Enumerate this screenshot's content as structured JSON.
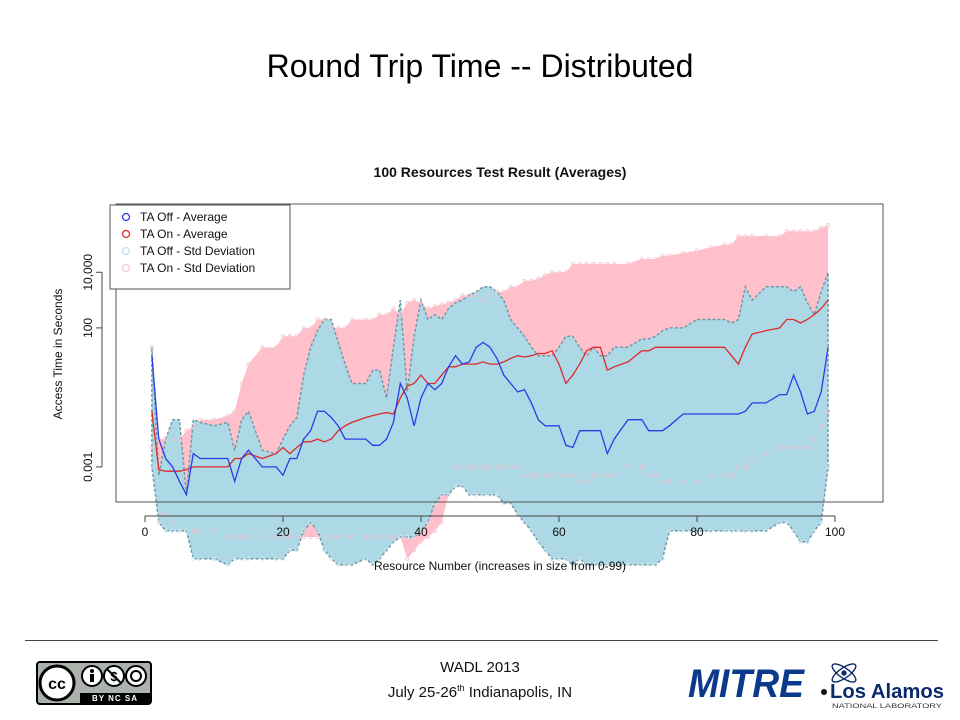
{
  "slide": {
    "title": "Round Trip Time -- Distributed",
    "footer_line1": "WADL 2013",
    "footer_line2_pre": "July 25-26",
    "footer_line2_sup": "th",
    "footer_line2_post": " Indianapolis, IN"
  },
  "logos": {
    "cc_badge_text": "BY NC SA",
    "mitre_text": "MITRE",
    "lanl_name": "Los Alamos",
    "lanl_sub": "NATIONAL LABORATORY"
  },
  "colors": {
    "off_avg": "#2b3de6",
    "on_avg": "#dd2b2b",
    "off_band": "#add8e6",
    "on_band": "#ffc0cb",
    "off_band_edge": "#6e9aa8"
  },
  "chart_data": {
    "type": "line",
    "title": "100 Resources Test Result (Averages)",
    "xlabel": "Resource Number (increases in size from 0-99)",
    "ylabel": "Access Time in Seconds",
    "y_scale": "log10",
    "xlim": [
      1,
      99
    ],
    "x_ticks": [
      0,
      20,
      40,
      60,
      80,
      100
    ],
    "x_tick_labels": [
      "0",
      "20",
      "40",
      "60",
      "80",
      "100"
    ],
    "y_ticks": [
      0.001,
      100,
      10000
    ],
    "y_tick_labels": [
      "0.001",
      "100",
      "10,000"
    ],
    "legend_position": "top-left",
    "legend": [
      "TA Off - Average",
      "TA On - Average",
      "TA Off - Std Deviation",
      "TA On - Std Deviation"
    ],
    "x": [
      1,
      2,
      3,
      4,
      5,
      6,
      7,
      8,
      10,
      12,
      13,
      14,
      15,
      17,
      19,
      20,
      21,
      22,
      23,
      24,
      25,
      26,
      27,
      28,
      29,
      30,
      32,
      33,
      34,
      35,
      36,
      37,
      38,
      39,
      40,
      41,
      42,
      43,
      44,
      45,
      46,
      47,
      48,
      49,
      50,
      51,
      52,
      53,
      54,
      55,
      56,
      57,
      58,
      59,
      60,
      61,
      62,
      63,
      64,
      65,
      66,
      67,
      68,
      70,
      72,
      73,
      74,
      75,
      76,
      78,
      80,
      82,
      84,
      85,
      86,
      87,
      88,
      90,
      92,
      93,
      94,
      95,
      96,
      97,
      98,
      99
    ],
    "series": [
      {
        "name": "TA Off - Average",
        "values": [
          10,
          0.01,
          0.002,
          0.001,
          0.0003,
          0.0001,
          0.003,
          0.002,
          0.002,
          0.002,
          0.0003,
          0.002,
          0.004,
          0.001,
          0.001,
          0.0005,
          0.002,
          0.002,
          0.01,
          0.02,
          0.1,
          0.1,
          0.06,
          0.03,
          0.01,
          0.01,
          0.01,
          0.006,
          0.006,
          0.01,
          0.04,
          1,
          0.3,
          0.03,
          0.3,
          1,
          0.6,
          1,
          4,
          10,
          5,
          6,
          20,
          30,
          20,
          8,
          2,
          1,
          0.5,
          0.6,
          0.2,
          0.05,
          0.03,
          0.03,
          0.03,
          0.006,
          0.005,
          0.02,
          0.02,
          0.02,
          0.02,
          0.003,
          0.01,
          0.05,
          0.05,
          0.02,
          0.02,
          0.02,
          0.03,
          0.08,
          0.08,
          0.08,
          0.08,
          0.08,
          0.08,
          0.1,
          0.2,
          0.2,
          0.4,
          0.4,
          2,
          0.5,
          0.08,
          0.1,
          0.5,
          20
        ]
      },
      {
        "name": "TA On - Average",
        "values": [
          0.1,
          0.0008,
          0.0007,
          0.0007,
          0.0007,
          0.0008,
          0.001,
          0.001,
          0.001,
          0.001,
          0.002,
          0.002,
          0.003,
          0.002,
          0.003,
          0.005,
          0.003,
          0.005,
          0.008,
          0.008,
          0.01,
          0.008,
          0.01,
          0.02,
          0.03,
          0.04,
          0.06,
          0.07,
          0.08,
          0.09,
          0.08,
          0.3,
          0.8,
          1,
          2,
          1,
          1,
          2,
          4,
          4,
          5,
          5,
          5,
          6,
          5,
          5,
          6,
          8,
          10,
          9,
          10,
          12,
          12,
          15,
          5,
          1,
          2,
          5,
          15,
          20,
          20,
          3,
          4,
          6,
          15,
          15,
          20,
          20,
          20,
          20,
          20,
          20,
          20,
          10,
          5,
          20,
          60,
          80,
          100,
          200,
          200,
          150,
          200,
          300,
          500,
          1000
        ]
      },
      {
        "name": "TA Off - Std Deviation (upper)",
        "values": [
          20,
          0.0005,
          0.01,
          0.05,
          0.05,
          0.0001,
          0.05,
          0.04,
          0.03,
          0.04,
          0.004,
          0.05,
          0.1,
          0.004,
          0.003,
          0.01,
          0.03,
          0.06,
          2,
          20,
          80,
          200,
          200,
          30,
          5,
          1,
          1,
          3,
          3,
          0.3,
          20,
          1000,
          0.5,
          50,
          1000,
          200,
          300,
          200,
          500,
          800,
          1000,
          1500,
          2000,
          3000,
          3000,
          2000,
          1000,
          200,
          100,
          50,
          20,
          10,
          10,
          10,
          20,
          50,
          50,
          20,
          10,
          20,
          10,
          10,
          20,
          20,
          40,
          40,
          50,
          80,
          100,
          100,
          200,
          200,
          200,
          150,
          200,
          3000,
          1000,
          3000,
          3000,
          3000,
          2000,
          3000,
          800,
          300,
          2000,
          10000
        ]
      },
      {
        "name": "TA Off - Std Deviation (lower)",
        "values": [
          0.001,
          1e-05,
          5e-06,
          5e-06,
          5e-06,
          5e-06,
          5e-07,
          5e-07,
          5e-07,
          3e-07,
          5e-07,
          5e-07,
          5e-07,
          5e-07,
          5e-07,
          5e-07,
          1e-06,
          1e-06,
          5e-06,
          1e-05,
          5e-06,
          1e-06,
          5e-07,
          3e-07,
          3e-07,
          3e-07,
          5e-07,
          3e-07,
          5e-07,
          1e-06,
          2e-06,
          3e-06,
          3e-06,
          3e-06,
          5e-06,
          1e-05,
          5e-05,
          0.0001,
          0.0001,
          0.0002,
          0.0002,
          0.0001,
          0.0001,
          0.0001,
          0.0001,
          0.0001,
          5e-05,
          5e-05,
          2e-05,
          1e-05,
          5e-06,
          2e-06,
          1e-06,
          5e-07,
          5e-07,
          5e-07,
          3e-07,
          5e-07,
          3e-07,
          3e-07,
          3e-07,
          3e-07,
          3e-07,
          3e-07,
          3e-07,
          3e-07,
          3e-07,
          5e-07,
          5e-06,
          5e-06,
          5e-06,
          5e-06,
          5e-06,
          5e-06,
          5e-06,
          5e-06,
          5e-06,
          5e-06,
          1e-05,
          1e-05,
          5e-06,
          2e-06,
          2e-06,
          5e-06,
          1e-05,
          0.001
        ]
      },
      {
        "name": "TA On - Std Deviation (upper)",
        "values": [
          20,
          0.01,
          0.01,
          0.01,
          0.01,
          0.02,
          0.03,
          0.05,
          0.05,
          0.07,
          0.1,
          1,
          5,
          20,
          20,
          50,
          50,
          50,
          100,
          100,
          200,
          200,
          100,
          100,
          100,
          200,
          200,
          200,
          300,
          300,
          500,
          300,
          800,
          1000,
          800,
          500,
          600,
          700,
          800,
          1000,
          1500,
          1500,
          1500,
          1000,
          1500,
          2000,
          2000,
          3000,
          3000,
          5000,
          5000,
          6000,
          8000,
          10000,
          10000,
          10000,
          20000,
          20000,
          20000,
          20000,
          20000,
          20000,
          20000,
          20000,
          30000,
          30000,
          30000,
          40000,
          40000,
          50000,
          60000,
          80000,
          100000,
          100000,
          200000,
          200000,
          200000,
          200000,
          200000,
          300000,
          300000,
          300000,
          300000,
          300000,
          400000,
          500000
        ]
      },
      {
        "name": "TA On - Std Deviation (lower)",
        "values": [
          0.005,
          2e-05,
          2e-05,
          1e-05,
          5e-06,
          5e-06,
          5e-06,
          5e-06,
          5e-06,
          3e-06,
          3e-06,
          3e-06,
          3e-06,
          3e-06,
          3e-06,
          3e-06,
          3e-06,
          3e-06,
          3e-06,
          3e-06,
          3e-06,
          3e-06,
          3e-06,
          3e-06,
          3e-06,
          3e-06,
          3e-06,
          3e-06,
          3e-06,
          3e-06,
          3e-06,
          3e-06,
          5e-07,
          1e-06,
          2e-06,
          3e-06,
          5e-06,
          1e-05,
          0.0001,
          0.001,
          0.001,
          0.001,
          0.001,
          0.001,
          0.001,
          0.001,
          0.001,
          0.001,
          0.001,
          0.0005,
          0.0005,
          0.0005,
          0.0005,
          0.0005,
          0.0005,
          0.0005,
          0.0005,
          0.0003,
          0.0003,
          0.0005,
          0.0005,
          0.0005,
          0.0005,
          0.001,
          0.001,
          0.0005,
          0.0005,
          0.0003,
          0.0003,
          0.0003,
          0.0003,
          0.0005,
          0.0005,
          0.0005,
          0.001,
          0.001,
          0.002,
          0.003,
          0.005,
          0.005,
          0.005,
          0.005,
          0.005,
          0.01,
          0.03,
          0.1
        ]
      }
    ]
  }
}
